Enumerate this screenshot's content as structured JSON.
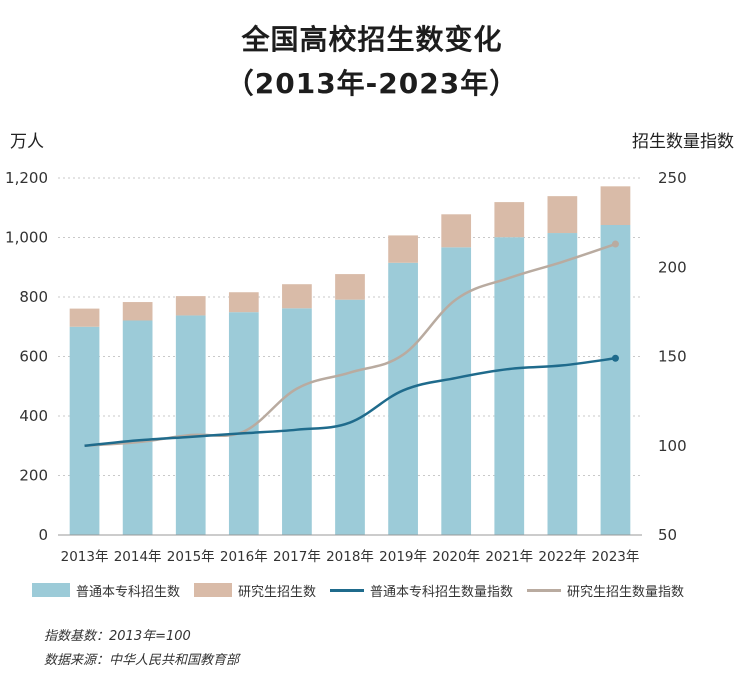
{
  "title_line1": "全国高校招生数变化",
  "title_line2": "（2013年-2023年）",
  "chart_data": {
    "type": "bar",
    "stacked": true,
    "categories": [
      "2013年",
      "2014年",
      "2015年",
      "2016年",
      "2017年",
      "2018年",
      "2019年",
      "2020年",
      "2021年",
      "2022年",
      "2023年"
    ],
    "left_axis": {
      "label": "万人",
      "ylim": [
        0,
        1200
      ],
      "ticks": [
        "0",
        "200",
        "400",
        "600",
        "800",
        "1,000",
        "1,200"
      ],
      "tick_values": [
        0,
        200,
        400,
        600,
        800,
        1000,
        1200
      ]
    },
    "right_axis": {
      "label": "招生数量指数",
      "ylim": [
        50,
        250
      ],
      "ticks": [
        "50",
        "100",
        "150",
        "200",
        "250"
      ],
      "tick_values": [
        50,
        100,
        150,
        200,
        250
      ]
    },
    "series": [
      {
        "name": "普通本专科招生数",
        "kind": "bar",
        "axis": "left",
        "color": "#9ccbd8",
        "values": [
          700,
          721,
          738,
          749,
          762,
          791,
          915,
          967,
          1001,
          1015,
          1042
        ]
      },
      {
        "name": "研究生招生数",
        "kind": "bar",
        "axis": "left",
        "color": "#d9bba8",
        "values": [
          61,
          62,
          65,
          67,
          81,
          86,
          92,
          111,
          118,
          124,
          130
        ]
      },
      {
        "name": "普通本专科招生数量指数",
        "kind": "line",
        "axis": "right",
        "color": "#1f6b8c",
        "values": [
          100,
          103,
          105,
          107,
          109,
          113,
          131,
          138,
          143,
          145,
          149
        ]
      },
      {
        "name": "研究生招生数量指数",
        "kind": "line",
        "axis": "right",
        "color": "#b9aba0",
        "values": [
          100,
          102,
          106,
          108,
          132,
          141,
          151,
          182,
          194,
          203,
          213
        ]
      }
    ],
    "grid": "horizontal dotted",
    "legend": "bottom"
  },
  "notes": {
    "base": "指数基数：2013年=100",
    "source": "数据来源：中华人民共和国教育部"
  }
}
